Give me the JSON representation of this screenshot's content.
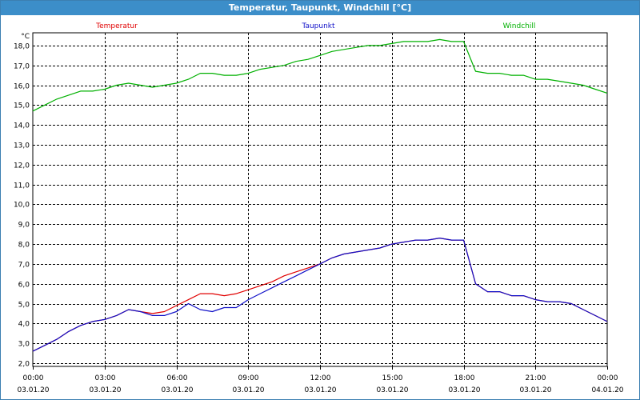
{
  "window": {
    "title": "Temperatur, Taupunkt, Windchill [°C]"
  },
  "chart_data": {
    "type": "line",
    "yunit": "°C",
    "ylim": [
      2.0,
      18.0
    ],
    "yticks": [
      "2,0",
      "3,0",
      "4,0",
      "5,0",
      "6,0",
      "7,0",
      "8,0",
      "9,0",
      "10,0",
      "11,0",
      "12,0",
      "13,0",
      "14,0",
      "15,0",
      "16,0",
      "17,0",
      "18,0"
    ],
    "xticks": [
      {
        "time": "00:00",
        "date": "03.01.20"
      },
      {
        "time": "03:00",
        "date": "03.01.20"
      },
      {
        "time": "06:00",
        "date": "03.01.20"
      },
      {
        "time": "09:00",
        "date": "03.01.20"
      },
      {
        "time": "12:00",
        "date": "03.01.20"
      },
      {
        "time": "15:00",
        "date": "03.01.20"
      },
      {
        "time": "18:00",
        "date": "03.01.20"
      },
      {
        "time": "21:00",
        "date": "03.01.20"
      },
      {
        "time": "00:00",
        "date": "04.01.20"
      }
    ],
    "grid": true,
    "series": [
      {
        "name": "Temperatur",
        "color": "#e00000",
        "x": [
          0,
          0.5,
          1,
          1.5,
          2,
          2.5,
          3,
          3.5,
          4,
          4.5,
          5,
          5.5,
          6,
          6.5,
          7,
          7.5,
          8,
          8.5,
          9,
          9.5,
          10,
          10.5,
          11,
          11.5,
          12,
          12.5,
          13,
          13.5,
          14,
          14.5,
          15,
          15.5,
          16,
          16.5,
          17,
          17.5,
          18,
          18.5,
          19,
          19.5,
          20,
          20.5,
          21,
          21.5,
          22,
          22.5,
          23,
          23.5,
          24
        ],
        "values": [
          2.6,
          2.9,
          3.2,
          3.6,
          3.9,
          4.1,
          4.2,
          4.4,
          4.7,
          4.6,
          4.5,
          4.6,
          4.9,
          5.2,
          5.5,
          5.5,
          5.4,
          5.5,
          5.7,
          5.9,
          6.1,
          6.4,
          6.6,
          6.8,
          7.0,
          7.3,
          7.5,
          7.6,
          7.7,
          7.8,
          8.0,
          8.1,
          8.2,
          8.2,
          8.3,
          8.2,
          8.2,
          6.0,
          5.6,
          5.6,
          5.4,
          5.4,
          5.2,
          5.1,
          5.1,
          5.0,
          4.7,
          4.4,
          4.1
        ]
      },
      {
        "name": "Taupunkt",
        "color": "#1010c8",
        "x": [
          0,
          0.5,
          1,
          1.5,
          2,
          2.5,
          3,
          3.5,
          4,
          4.5,
          5,
          5.5,
          6,
          6.5,
          7,
          7.5,
          8,
          8.5,
          9,
          9.5,
          10,
          10.5,
          11,
          11.5,
          12,
          12.5,
          13,
          13.5,
          14,
          14.5,
          15,
          15.5,
          16,
          16.5,
          17,
          17.5,
          18,
          18.5,
          19,
          19.5,
          20,
          20.5,
          21,
          21.5,
          22,
          22.5,
          23,
          23.5,
          24
        ],
        "values": [
          2.6,
          2.9,
          3.2,
          3.6,
          3.9,
          4.1,
          4.2,
          4.4,
          4.7,
          4.6,
          4.4,
          4.4,
          4.6,
          5.0,
          4.7,
          4.6,
          4.8,
          4.8,
          5.2,
          5.5,
          5.8,
          6.1,
          6.4,
          6.7,
          7.0,
          7.3,
          7.5,
          7.6,
          7.7,
          7.8,
          8.0,
          8.1,
          8.2,
          8.2,
          8.3,
          8.2,
          8.2,
          6.0,
          5.6,
          5.6,
          5.4,
          5.4,
          5.2,
          5.1,
          5.1,
          5.0,
          4.7,
          4.4,
          4.1
        ]
      },
      {
        "name": "Windchill",
        "color": "#00b000",
        "x": [
          0,
          0.5,
          1,
          1.5,
          2,
          2.5,
          3,
          3.5,
          4,
          4.5,
          5,
          5.5,
          6,
          6.5,
          7,
          7.5,
          8,
          8.5,
          9,
          9.5,
          10,
          10.5,
          11,
          11.5,
          12,
          12.5,
          13,
          13.5,
          14,
          14.5,
          15,
          15.5,
          16,
          16.5,
          17,
          17.5,
          18,
          18.5,
          19,
          19.5,
          20,
          20.5,
          21,
          21.5,
          22,
          22.5,
          23,
          23.5,
          24
        ],
        "values": [
          14.7,
          15.0,
          15.3,
          15.5,
          15.7,
          15.7,
          15.8,
          16.0,
          16.1,
          16.0,
          15.9,
          16.0,
          16.1,
          16.3,
          16.6,
          16.6,
          16.5,
          16.5,
          16.6,
          16.8,
          16.9,
          17.0,
          17.2,
          17.3,
          17.5,
          17.7,
          17.8,
          17.9,
          18.0,
          18.0,
          18.1,
          18.2,
          18.2,
          18.2,
          18.3,
          18.2,
          18.2,
          16.7,
          16.6,
          16.6,
          16.5,
          16.5,
          16.3,
          16.3,
          16.2,
          16.1,
          16.0,
          15.8,
          15.6
        ]
      }
    ]
  }
}
